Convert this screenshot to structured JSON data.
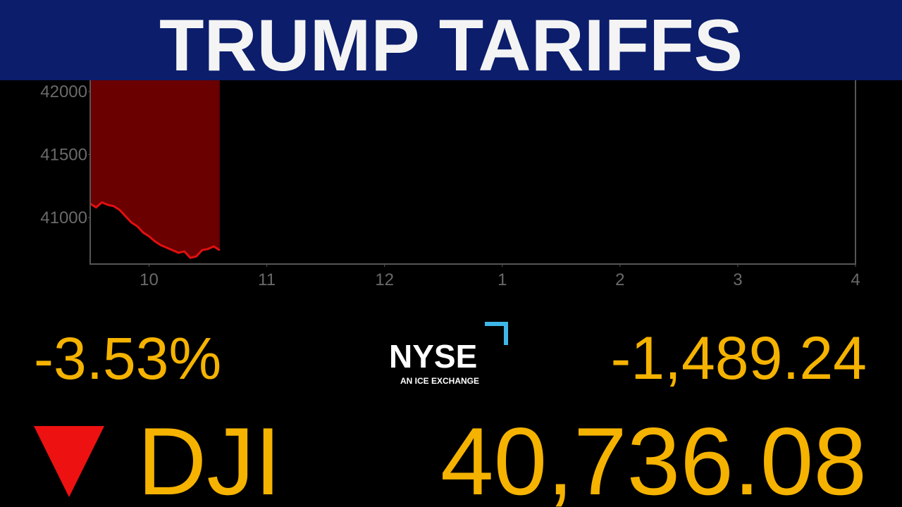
{
  "banner": {
    "title": "TRUMP TARIFFS"
  },
  "chart_data": {
    "type": "area",
    "x": [
      9.5,
      9.55,
      9.6,
      9.65,
      9.7,
      9.75,
      9.8,
      9.85,
      9.9,
      9.95,
      10.0,
      10.05,
      10.1,
      10.15,
      10.2,
      10.25,
      10.3,
      10.35,
      10.4,
      10.45,
      10.5,
      10.55,
      10.6
    ],
    "values": [
      41110,
      41080,
      41120,
      41100,
      41090,
      41060,
      41010,
      40960,
      40930,
      40880,
      40850,
      40810,
      40780,
      40760,
      40740,
      40720,
      40730,
      40680,
      40690,
      40740,
      40750,
      40770,
      40740
    ],
    "color": "#e01010",
    "fill_color": "#6a0000",
    "xlim": [
      9.5,
      16
    ],
    "xticks": [
      10,
      11,
      12,
      {
        "value": 13,
        "label": "1"
      },
      {
        "value": 14,
        "label": "2"
      },
      {
        "value": 15,
        "label": "3"
      },
      {
        "value": 16,
        "label": "4"
      }
    ],
    "ylim": [
      40630,
      42090
    ],
    "yticks": [
      41000,
      41500,
      42000
    ]
  },
  "ticker": {
    "change_percent": "-3.53%",
    "change_points": "-1,489.24",
    "symbol": "DJI",
    "price": "40,736.08"
  },
  "logo": {
    "name": "NYSE",
    "tagline": "AN ICE EXCHANGE"
  }
}
